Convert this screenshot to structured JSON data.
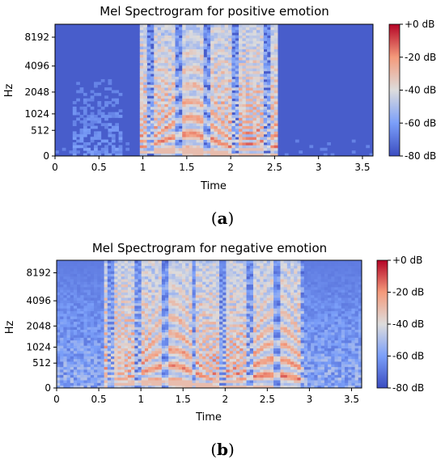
{
  "chart_data": [
    {
      "type": "heatmap",
      "title": "Mel Spectrogram for positive emotion",
      "xlabel": "Time",
      "ylabel": "Hz",
      "xlim": [
        0,
        3.62
      ],
      "x_ticks": [
        "0",
        "0.5",
        "1",
        "1.5",
        "2",
        "2.5",
        "3",
        "3.5"
      ],
      "x_tick_values": [
        0,
        0.5,
        1,
        1.5,
        2,
        2.5,
        3,
        3.5
      ],
      "y_scale": "mel",
      "y_ticks": [
        "0",
        "512",
        "1024",
        "2048",
        "4096",
        "8192"
      ],
      "y_tick_values": [
        0,
        512,
        1024,
        2048,
        4096,
        8192
      ],
      "colorbar": {
        "label_ticks": [
          "+0 dB",
          "-20 dB",
          "-40 dB",
          "-60 dB",
          "-80 dB"
        ],
        "range": [
          -80,
          0
        ],
        "colormap": "coolwarm"
      },
      "activity": {
        "speech_start": 0.97,
        "speech_end": 2.55,
        "faint_segments": [
          [
            0.2,
            0.75
          ]
        ]
      },
      "caption": "a"
    },
    {
      "type": "heatmap",
      "title": "Mel Spectrogram for negative emotion",
      "xlabel": "Time",
      "ylabel": "Hz",
      "xlim": [
        0,
        3.62
      ],
      "x_ticks": [
        "0",
        "0.5",
        "1",
        "1.5",
        "2",
        "2.5",
        "3",
        "3.5"
      ],
      "x_tick_values": [
        0,
        0.5,
        1,
        1.5,
        2,
        2.5,
        3,
        3.5
      ],
      "y_scale": "mel",
      "y_ticks": [
        "0",
        "512",
        "1024",
        "2048",
        "4096",
        "8192"
      ],
      "y_tick_values": [
        0,
        512,
        1024,
        2048,
        4096,
        8192
      ],
      "colorbar": {
        "label_ticks": [
          "+0 dB",
          "-20 dB",
          "-40 dB",
          "-60 dB",
          "-80 dB"
        ],
        "range": [
          -80,
          0
        ],
        "colormap": "coolwarm"
      },
      "activity": {
        "speech_start": 0.58,
        "speech_end": 2.95,
        "faint_segments": []
      },
      "caption": "b"
    }
  ]
}
